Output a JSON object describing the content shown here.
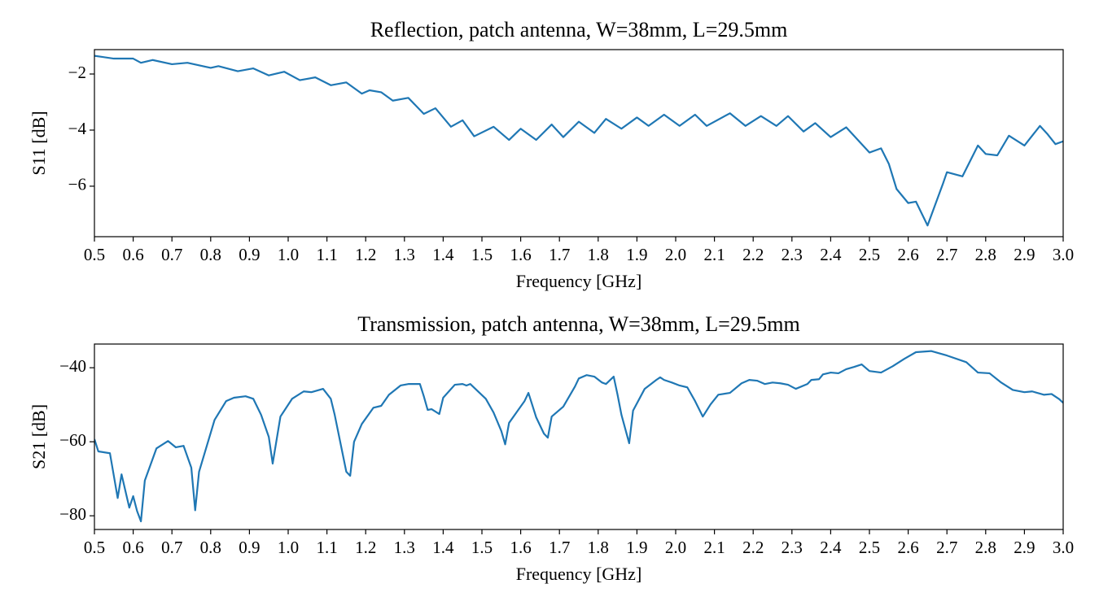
{
  "chart_data": [
    {
      "type": "line",
      "title": "Reflection, patch antenna, W=38mm, L=29.5mm",
      "xlabel": "Frequency [GHz]",
      "ylabel": "S11 [dB]",
      "color": "#1f77b4",
      "x": [
        0.5,
        0.55,
        0.6,
        0.62,
        0.65,
        0.7,
        0.74,
        0.8,
        0.82,
        0.87,
        0.91,
        0.95,
        0.99,
        1.03,
        1.07,
        1.11,
        1.15,
        1.19,
        1.21,
        1.24,
        1.27,
        1.31,
        1.35,
        1.38,
        1.42,
        1.45,
        1.48,
        1.53,
        1.57,
        1.6,
        1.64,
        1.68,
        1.71,
        1.75,
        1.79,
        1.82,
        1.86,
        1.9,
        1.93,
        1.97,
        2.01,
        2.05,
        2.08,
        2.14,
        2.18,
        2.22,
        2.26,
        2.29,
        2.33,
        2.36,
        2.4,
        2.44,
        2.5,
        2.53,
        2.55,
        2.57,
        2.6,
        2.62,
        2.65,
        2.69,
        2.7,
        2.74,
        2.78,
        2.8,
        2.83,
        2.86,
        2.9,
        2.94,
        2.96,
        2.98,
        3.0
      ],
      "values": [
        -1.35,
        -1.45,
        -1.45,
        -1.6,
        -1.5,
        -1.65,
        -1.6,
        -1.78,
        -1.72,
        -1.9,
        -1.8,
        -2.05,
        -1.92,
        -2.22,
        -2.12,
        -2.4,
        -2.3,
        -2.7,
        -2.58,
        -2.65,
        -2.95,
        -2.85,
        -3.42,
        -3.22,
        -3.88,
        -3.65,
        -4.22,
        -3.88,
        -4.35,
        -3.95,
        -4.35,
        -3.8,
        -4.25,
        -3.7,
        -4.1,
        -3.6,
        -3.95,
        -3.55,
        -3.85,
        -3.45,
        -3.85,
        -3.45,
        -3.85,
        -3.4,
        -3.85,
        -3.5,
        -3.85,
        -3.5,
        -4.05,
        -3.75,
        -4.25,
        -3.9,
        -4.8,
        -4.65,
        -5.2,
        -6.1,
        -6.6,
        -6.55,
        -7.4,
        -5.9,
        -5.5,
        -5.65,
        -4.55,
        -4.85,
        -4.9,
        -4.2,
        -4.55,
        -3.85,
        -4.15,
        -4.5,
        -4.4
      ],
      "xlim": [
        0.5,
        3.0
      ],
      "ylim": [
        -7.8,
        -1.13
      ],
      "xticks": [
        0.5,
        0.6,
        0.7,
        0.8,
        0.9,
        {
          "value": 1,
          "label": "1.0"
        },
        1.1,
        1.2,
        1.3,
        1.4,
        1.5,
        1.6,
        1.7,
        1.8,
        1.9,
        {
          "value": 2,
          "label": "2.0"
        },
        2.1,
        2.2,
        2.3,
        2.4,
        2.5,
        2.6,
        2.7,
        2.8,
        2.9,
        {
          "value": 3,
          "label": "3.0"
        }
      ],
      "yticks": [
        {
          "value": -6,
          "label": "−6"
        },
        {
          "value": -4,
          "label": "−4"
        },
        {
          "value": -2,
          "label": "−2"
        }
      ]
    },
    {
      "type": "line",
      "title": "Transmission, patch antenna, W=38mm, L=29.5mm",
      "xlabel": "Frequency [GHz]",
      "ylabel": "S21 [dB]",
      "color": "#1f77b4",
      "x": [
        0.5,
        0.51,
        0.54,
        0.56,
        0.57,
        0.59,
        0.6,
        0.61,
        0.62,
        0.63,
        0.66,
        0.69,
        0.71,
        0.73,
        0.75,
        0.76,
        0.77,
        0.81,
        0.84,
        0.86,
        0.89,
        0.91,
        0.93,
        0.95,
        0.96,
        0.98,
        1.01,
        1.04,
        1.06,
        1.09,
        1.11,
        1.12,
        1.15,
        1.16,
        1.17,
        1.19,
        1.22,
        1.24,
        1.26,
        1.29,
        1.31,
        1.34,
        1.35,
        1.36,
        1.37,
        1.39,
        1.4,
        1.43,
        1.45,
        1.46,
        1.47,
        1.51,
        1.53,
        1.55,
        1.56,
        1.57,
        1.61,
        1.62,
        1.64,
        1.66,
        1.67,
        1.68,
        1.71,
        1.74,
        1.75,
        1.77,
        1.79,
        1.81,
        1.82,
        1.84,
        1.85,
        1.86,
        1.88,
        1.89,
        1.92,
        1.95,
        1.96,
        1.97,
        1.99,
        2.01,
        2.03,
        2.05,
        2.07,
        2.09,
        2.11,
        2.14,
        2.17,
        2.19,
        2.21,
        2.23,
        2.25,
        2.27,
        2.29,
        2.31,
        2.34,
        2.35,
        2.37,
        2.38,
        2.4,
        2.42,
        2.44,
        2.46,
        2.48,
        2.5,
        2.53,
        2.56,
        2.59,
        2.62,
        2.66,
        2.7,
        2.75,
        2.78,
        2.81,
        2.84,
        2.87,
        2.9,
        2.92,
        2.95,
        2.97,
        2.99,
        3.0
      ],
      "values": [
        -59.3,
        -62.6,
        -63.1,
        -75.2,
        -68.8,
        -77.8,
        -74.7,
        -78.7,
        -81.5,
        -70.5,
        -61.8,
        -59.8,
        -61.5,
        -61.1,
        -67.0,
        -78.5,
        -68.1,
        -54.1,
        -49.0,
        -48.1,
        -47.7,
        -48.4,
        -52.7,
        -58.7,
        -65.9,
        -53.2,
        -48.4,
        -46.4,
        -46.6,
        -45.7,
        -48.4,
        -52.7,
        -68.1,
        -69.2,
        -60.0,
        -55.2,
        -50.8,
        -50.3,
        -47.3,
        -44.8,
        -44.4,
        -44.4,
        -47.7,
        -51.4,
        -51.2,
        -52.5,
        -48.1,
        -44.6,
        -44.4,
        -44.8,
        -44.4,
        -48.4,
        -52.1,
        -57.1,
        -60.7,
        -54.9,
        -49.0,
        -46.8,
        -53.4,
        -57.8,
        -58.9,
        -53.2,
        -50.5,
        -45.1,
        -42.9,
        -42.0,
        -42.4,
        -44.0,
        -44.4,
        -42.4,
        -47.3,
        -52.7,
        -60.4,
        -51.6,
        -45.7,
        -43.3,
        -42.6,
        -43.3,
        -44.0,
        -44.8,
        -45.3,
        -49.0,
        -53.2,
        -49.9,
        -47.3,
        -46.8,
        -44.2,
        -43.3,
        -43.5,
        -44.4,
        -44.0,
        -44.2,
        -44.6,
        -45.7,
        -44.4,
        -43.3,
        -43.1,
        -41.8,
        -41.3,
        -41.5,
        -40.4,
        -39.8,
        -39.1,
        -40.9,
        -41.3,
        -39.6,
        -37.6,
        -35.8,
        -35.5,
        -36.7,
        -38.5,
        -41.3,
        -41.5,
        -44.0,
        -46.0,
        -46.6,
        -46.4,
        -47.3,
        -47.1,
        -48.5,
        -49.5
      ],
      "xlim": [
        0.5,
        3.0
      ],
      "ylim": [
        -83.7,
        -33.6
      ],
      "xticks": [
        0.5,
        0.6,
        0.7,
        0.8,
        0.9,
        {
          "value": 1,
          "label": "1.0"
        },
        1.1,
        1.2,
        1.3,
        1.4,
        1.5,
        1.6,
        1.7,
        1.8,
        1.9,
        {
          "value": 2,
          "label": "2.0"
        },
        2.1,
        2.2,
        2.3,
        2.4,
        2.5,
        2.6,
        2.7,
        2.8,
        2.9,
        {
          "value": 3,
          "label": "3.0"
        }
      ],
      "yticks": [
        {
          "value": -80,
          "label": "−80"
        },
        {
          "value": -60,
          "label": "−60"
        },
        {
          "value": -40,
          "label": "−40"
        }
      ]
    }
  ]
}
